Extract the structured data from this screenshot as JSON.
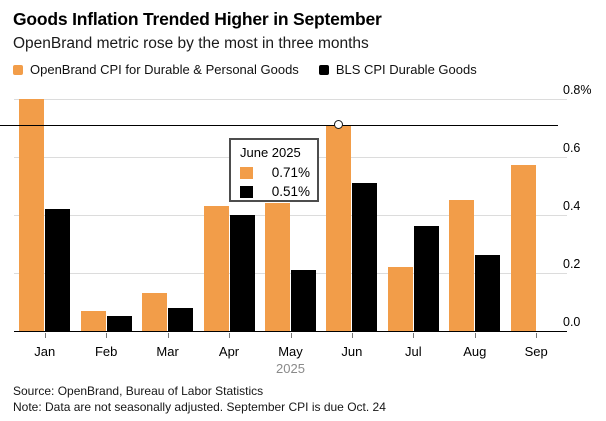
{
  "header": {
    "title": "Goods Inflation Trended Higher in September",
    "subtitle": "OpenBrand metric rose by the most in three months"
  },
  "legend": [
    {
      "label": "OpenBrand CPI for Durable & Personal Goods",
      "color": "#F29D49"
    },
    {
      "label": "BLS CPI Durable Goods",
      "color": "#000000"
    }
  ],
  "chart_data": {
    "type": "bar",
    "categories": [
      "Jan",
      "Feb",
      "Mar",
      "Apr",
      "May",
      "Jun",
      "Jul",
      "Aug",
      "Sep"
    ],
    "x_axis_year": "2025",
    "series": [
      {
        "name": "OpenBrand CPI for Durable & Personal Goods",
        "color": "#F29D49",
        "values": [
          0.8,
          0.07,
          0.13,
          0.43,
          0.44,
          0.71,
          0.22,
          0.45,
          0.57
        ]
      },
      {
        "name": "BLS CPI Durable Goods",
        "color": "#000000",
        "values": [
          0.42,
          0.05,
          0.08,
          0.4,
          0.21,
          0.51,
          0.36,
          0.26,
          null
        ]
      }
    ],
    "ylim": [
      0,
      0.8
    ],
    "yticks": [
      "0.8%",
      "0.6",
      "0.4",
      "0.2",
      "0.0"
    ],
    "ytick_values": [
      0.8,
      0.6,
      0.4,
      0.2,
      0.0
    ],
    "grid": true,
    "legend_position": "top",
    "highlight": {
      "month": "Jun",
      "series": "OpenBrand CPI for Durable & Personal Goods",
      "line_value": 0.71
    }
  },
  "tooltip": {
    "title": "June 2025",
    "rows": [
      {
        "swatch": "#F29D49",
        "value": "0.71%"
      },
      {
        "swatch": "#000000",
        "value": "0.51%"
      }
    ]
  },
  "footer": {
    "source": "Source: OpenBrand, Bureau of Labor Statistics",
    "note": "Note: Data are not seasonally adjusted. September CPI is due Oct. 24"
  }
}
